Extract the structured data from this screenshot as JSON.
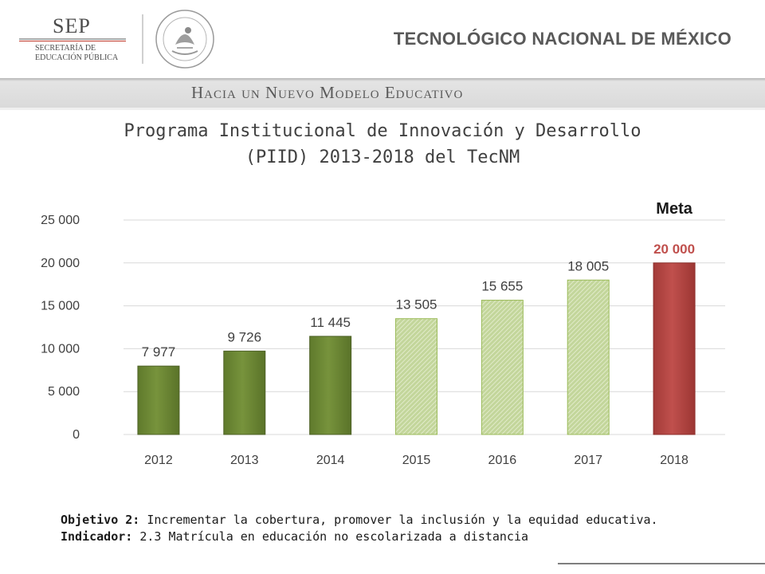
{
  "header": {
    "sep": {
      "name": "SEP",
      "line1": "SECRETARÍA DE",
      "line2": "EDUCACIÓN PÚBLICA"
    },
    "seal_text": "ESTADOS UNIDOS MEXICANOS",
    "institution": "TECNOLÓGICO NACIONAL DE MÉXICO"
  },
  "band_title": "Hacia un Nuevo Modelo Educativo",
  "title": {
    "line1": "Programa Institucional de Innovación y Desarrollo",
    "line2": "(PIID) 2013-2018 del TecNM"
  },
  "colors": {
    "actual": "#77933c",
    "projected": "#c3d69b",
    "goal": "#c0504d",
    "axis_text": "#404040",
    "grid": "#d9d9d9"
  },
  "chart_data": {
    "type": "bar",
    "categories": [
      "2012",
      "2013",
      "2014",
      "2015",
      "2016",
      "2017",
      "2018"
    ],
    "values": [
      7977,
      9726,
      11445,
      13505,
      15655,
      18005,
      20000
    ],
    "value_labels": [
      "7 977",
      "9 726",
      "11 445",
      "13 505",
      "15 655",
      "18 005",
      "20 000"
    ],
    "bar_styles": [
      "actual",
      "actual",
      "actual",
      "projected",
      "projected",
      "projected",
      "goal"
    ],
    "ylim": [
      0,
      25000
    ],
    "yticks": [
      0,
      5000,
      10000,
      15000,
      20000,
      25000
    ],
    "ytick_labels": [
      "0",
      "5 000",
      "10 000",
      "15 000",
      "20 000",
      "25 000"
    ],
    "annotation": "Meta",
    "grid": true
  },
  "footer": {
    "objective_label": "Objetivo 2:",
    "objective_text": "Incrementar la cobertura, promover la inclusión y la equidad educativa.",
    "indicator_label": "Indicador:",
    "indicator_text": "2.3 Matrícula en educación no escolarizada a distancia"
  }
}
